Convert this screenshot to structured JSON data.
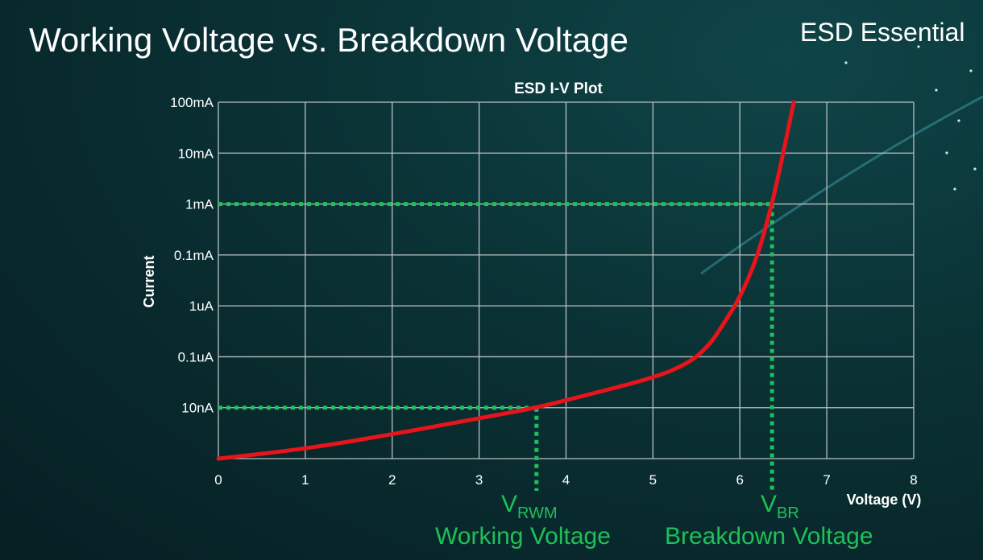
{
  "slide": {
    "title": "Working Voltage vs. Breakdown Voltage",
    "brand": "ESD Essential"
  },
  "chart_data": {
    "type": "line",
    "title": "ESD I-V Plot",
    "xlabel": "Voltage (V)",
    "ylabel": "Current",
    "xlim": [
      0,
      8
    ],
    "x_ticks": [
      "0",
      "1",
      "2",
      "3",
      "4",
      "5",
      "6",
      "7",
      "8"
    ],
    "y_scale": "log",
    "y_ticks": [
      {
        "label": "10nA",
        "value": 1e-08
      },
      {
        "label": "0.1uA",
        "value": 1e-07
      },
      {
        "label": "1uA",
        "value": 1e-06
      },
      {
        "label": "0.1mA",
        "value": 0.0001
      },
      {
        "label": "1mA",
        "value": 0.001
      },
      {
        "label": "10mA",
        "value": 0.01
      },
      {
        "label": "100mA",
        "value": 0.1
      }
    ],
    "grid": true,
    "series": [
      {
        "color": "#e8141c",
        "x": [
          0,
          1,
          2,
          3,
          3.66,
          4,
          5,
          5.4,
          5.64,
          5.83,
          6.0,
          6.2,
          6.37,
          6.48,
          6.62
        ],
        "y": [
          1e-09,
          1.55e-09,
          3e-09,
          6.2e-09,
          1e-08,
          1.4e-08,
          3.8e-08,
          7.3e-08,
          1.6e-07,
          4.9e-07,
          2.1e-06,
          7.9e-05,
          0.001,
          0.007,
          0.1
        ]
      }
    ],
    "annotations": [
      {
        "symbol": "V",
        "subscript": "RWM",
        "label": "Working Voltage",
        "x": 3.66,
        "y": 1e-08,
        "color": "#1fbf5a"
      },
      {
        "symbol": "V",
        "subscript": "BR",
        "label": "Breakdown Voltage",
        "x": 6.37,
        "y": 0.001,
        "color": "#1fbf5a"
      }
    ]
  }
}
